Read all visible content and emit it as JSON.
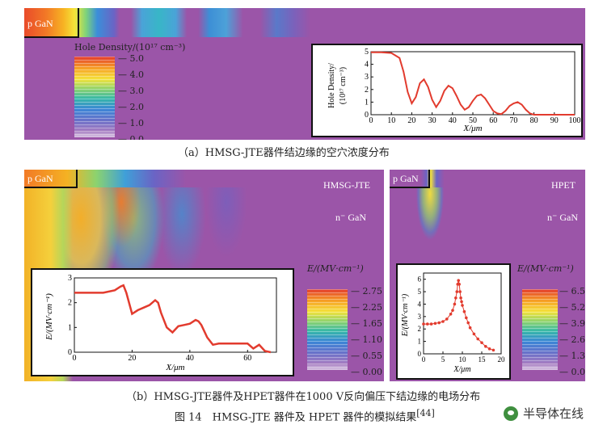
{
  "panel_a": {
    "region_label": "p GaN",
    "legend_title": "Hole Density/(10¹⁷ cm⁻³)",
    "legend_ticks": [
      "5.0",
      "4.0",
      "3.0",
      "2.0",
      "1.0",
      "0.0"
    ],
    "caption": "（a）HMSG-JTE器件结边缘的空穴浓度分布",
    "inset": {
      "ylabel": "Hole Density/",
      "yunit": "(10¹⁷ cm⁻³)",
      "xlabel": "X/μm"
    }
  },
  "panel_b_left": {
    "region_label": "p GaN",
    "title": "HMSG-JTE",
    "layer_label": "n⁻ GaN",
    "legend_title": "E/(MV·cm⁻¹)",
    "legend_ticks": [
      "2.75",
      "2.25",
      "1.65",
      "1.10",
      "0.55",
      "0.00"
    ],
    "inset": {
      "ylabel": "E/(MV·cm⁻¹)",
      "xlabel": "X/μm"
    }
  },
  "panel_b_right": {
    "region_label": "p GaN",
    "title": "HPET",
    "layer_label": "n⁻ GaN",
    "legend_title": "E/(MV·cm⁻¹)",
    "legend_ticks": [
      "6.5",
      "5.2",
      "3.9",
      "2.6",
      "1.3",
      "0.0"
    ],
    "inset": {
      "ylabel": "E/(MV·cm⁻¹)",
      "xlabel": "X/μm"
    }
  },
  "caption_b": "（b）HMSG-JTE器件及HPET器件在1000 V反向偏压下结边缘的电场分布",
  "figure_caption": "图 14　HMSG-JTE 器件及 HPET 器件的模拟结果",
  "figure_ref": "[44]",
  "watermark": "半导体在线",
  "colors": {
    "background_purple": "#9b55a8",
    "curve_red": "#e23b2e"
  },
  "chart_data": [
    {
      "type": "line",
      "ylabel": "Hole Density/(10¹⁷ cm⁻³)",
      "xlabel": "X/μm",
      "xlim": [
        0,
        100
      ],
      "ylim": [
        0,
        5
      ],
      "xticks": [
        0,
        10,
        20,
        30,
        40,
        50,
        60,
        70,
        80,
        90,
        100
      ],
      "yticks": [
        0,
        1,
        2,
        3,
        4,
        5
      ],
      "x": [
        0,
        5,
        10,
        14,
        16,
        18,
        20,
        22,
        24,
        26,
        28,
        30,
        32,
        34,
        36,
        38,
        40,
        42,
        44,
        46,
        48,
        50,
        52,
        54,
        56,
        58,
        60,
        62,
        64,
        66,
        68,
        70,
        72,
        74,
        76,
        78,
        80,
        85,
        90,
        95,
        100
      ],
      "y": [
        4.95,
        4.95,
        4.9,
        4.5,
        3.4,
        1.8,
        0.9,
        1.4,
        2.5,
        2.8,
        2.2,
        1.2,
        0.6,
        1.1,
        1.9,
        2.3,
        2.1,
        1.5,
        0.8,
        0.4,
        0.6,
        1.1,
        1.5,
        1.6,
        1.3,
        0.8,
        0.3,
        0.1,
        0.05,
        0.3,
        0.7,
        0.9,
        1.0,
        0.8,
        0.4,
        0.1,
        0.0,
        0.0,
        0.0,
        0.0,
        0.0
      ]
    },
    {
      "type": "line",
      "ylabel": "E/(MV·cm⁻¹)",
      "xlabel": "X/μm",
      "xlim": [
        0,
        70
      ],
      "ylim": [
        0,
        3
      ],
      "xticks": [
        0,
        20,
        40,
        60
      ],
      "yticks": [
        0,
        1,
        2,
        3
      ],
      "x": [
        0,
        5,
        10,
        14,
        16,
        17,
        18,
        20,
        22,
        24,
        26,
        28,
        29,
        30,
        32,
        34,
        36,
        38,
        40,
        42,
        43,
        44,
        46,
        48,
        50,
        55,
        60,
        62,
        64,
        66,
        68
      ],
      "y": [
        2.4,
        2.4,
        2.4,
        2.5,
        2.65,
        2.7,
        2.4,
        1.55,
        1.7,
        1.8,
        1.9,
        2.1,
        2.0,
        1.6,
        1.0,
        0.8,
        1.05,
        1.1,
        1.15,
        1.3,
        1.25,
        1.1,
        0.6,
        0.3,
        0.35,
        0.35,
        0.35,
        0.15,
        0.3,
        0.05,
        0.0
      ]
    },
    {
      "type": "scatter",
      "ylabel": "E/(MV·cm⁻¹)",
      "xlabel": "X/μm",
      "xlim": [
        0,
        20
      ],
      "ylim": [
        0,
        6.5
      ],
      "xticks": [
        0,
        5,
        10,
        15,
        20
      ],
      "yticks": [
        0,
        1,
        2,
        3,
        4,
        5,
        6
      ],
      "x": [
        0,
        1,
        2,
        3,
        4,
        5,
        6,
        7,
        7.5,
        8,
        8.3,
        8.6,
        8.8,
        9,
        9.2,
        9.4,
        9.6,
        9.8,
        10,
        10.5,
        11,
        11.5,
        12,
        13,
        14,
        15,
        16,
        17,
        18
      ],
      "y": [
        2.4,
        2.4,
        2.4,
        2.45,
        2.5,
        2.6,
        2.8,
        3.2,
        3.5,
        4.0,
        4.5,
        5.0,
        5.6,
        5.9,
        5.6,
        5.0,
        4.5,
        4.2,
        3.9,
        3.4,
        2.9,
        2.5,
        2.1,
        1.6,
        1.2,
        0.9,
        0.6,
        0.4,
        0.3
      ]
    }
  ]
}
